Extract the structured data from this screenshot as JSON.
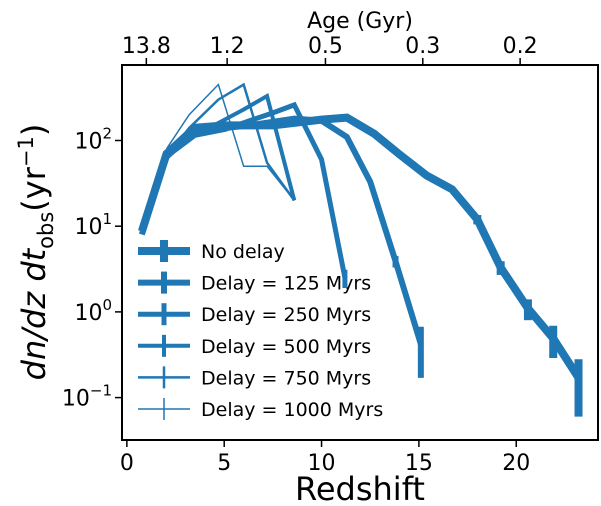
{
  "chart_data": {
    "type": "line",
    "x_label": "Redshift",
    "top_label": "Age (Gyr)",
    "y_label_parts": [
      "dn/dz dt",
      "obs",
      "(yr",
      "−1",
      ")"
    ],
    "log_y": true,
    "xlim": [
      -0.25,
      24.2
    ],
    "ylim": [
      0.032,
      760
    ],
    "xticks": [
      0,
      5,
      10,
      15,
      20
    ],
    "top_ticks": [
      {
        "value": 1.0,
        "label": "13.8"
      },
      {
        "value": 5.15,
        "label": "1.2"
      },
      {
        "value": 10.2,
        "label": "0.5"
      },
      {
        "value": 15.2,
        "label": "0.3"
      },
      {
        "value": 20.2,
        "label": "0.2"
      }
    ],
    "yticks": [
      {
        "value": 0.1,
        "label": "10",
        "exponent": "−1"
      },
      {
        "value": 1,
        "label": "10",
        "exponent": "0"
      },
      {
        "value": 10,
        "label": "10",
        "exponent": "1"
      },
      {
        "value": 100,
        "label": "10",
        "exponent": "2"
      }
    ],
    "color": "#1f77b4",
    "legend": "lower left",
    "series": [
      {
        "name": "No delay",
        "linewidth": 8,
        "x": [
          0.77,
          2.04,
          3.5,
          5.05,
          7.5,
          10,
          11.3,
          12.7,
          14,
          15.4,
          16.7,
          18,
          19.2,
          20.6,
          21.9,
          23.2
        ],
        "values": [
          8.7,
          70,
          141,
          150,
          150,
          175,
          185,
          120,
          69,
          39,
          27,
          12,
          3.3,
          1.1,
          0.49,
          0.17
        ],
        "errors": [
          0,
          0,
          0,
          0,
          0,
          0,
          0,
          0,
          0,
          0,
          0,
          1.5,
          0.6,
          0.3,
          0.2,
          0.11
        ]
      },
      {
        "name": "Delay = 125 Myrs",
        "linewidth": 6,
        "x": [
          0.77,
          2.04,
          3.5,
          5.05,
          6.3,
          7.5,
          8.6,
          10,
          11.3,
          12.5,
          13.8,
          15.1
        ],
        "values": [
          8,
          68,
          125,
          140,
          150,
          165,
          180,
          170,
          110,
          33,
          3.9,
          0.42
        ],
        "errors": [
          0,
          0,
          0,
          0,
          0,
          0,
          0,
          0,
          0,
          0,
          0.6,
          0.25
        ]
      },
      {
        "name": "Delay = 250 Myrs",
        "linewidth": 5,
        "x": [
          2.04,
          3.5,
          5.05,
          6.3,
          7.5,
          8.6,
          10,
          11.2
        ],
        "values": [
          65,
          115,
          135,
          170,
          210,
          260,
          60,
          2.5
        ],
        "errors": [
          0,
          0,
          0,
          0,
          0,
          0,
          0,
          0.6
        ]
      },
      {
        "name": "Delay = 500 Myrs",
        "linewidth": 4,
        "x": [
          2.04,
          3.2,
          4.7,
          6,
          7.2,
          8.6
        ],
        "values": [
          62,
          110,
          160,
          230,
          330,
          20
        ],
        "errors": [
          0,
          0,
          0,
          0,
          0,
          0
        ]
      },
      {
        "name": "Delay = 750 Myrs",
        "linewidth": 2.5,
        "x": [
          2.04,
          3.2,
          4.7,
          6,
          7.2,
          8.6
        ],
        "values": [
          65,
          140,
          300,
          450,
          55,
          20
        ],
        "errors": [
          0,
          0,
          0,
          0,
          0,
          0
        ]
      },
      {
        "name": "Delay = 1000 Myrs",
        "linewidth": 1.5,
        "x": [
          2.04,
          3.2,
          4.7,
          6,
          7.2,
          8.6
        ],
        "values": [
          80,
          200,
          450,
          50,
          50,
          20
        ],
        "errors": [
          0,
          0,
          0,
          0,
          0,
          0
        ]
      }
    ]
  }
}
